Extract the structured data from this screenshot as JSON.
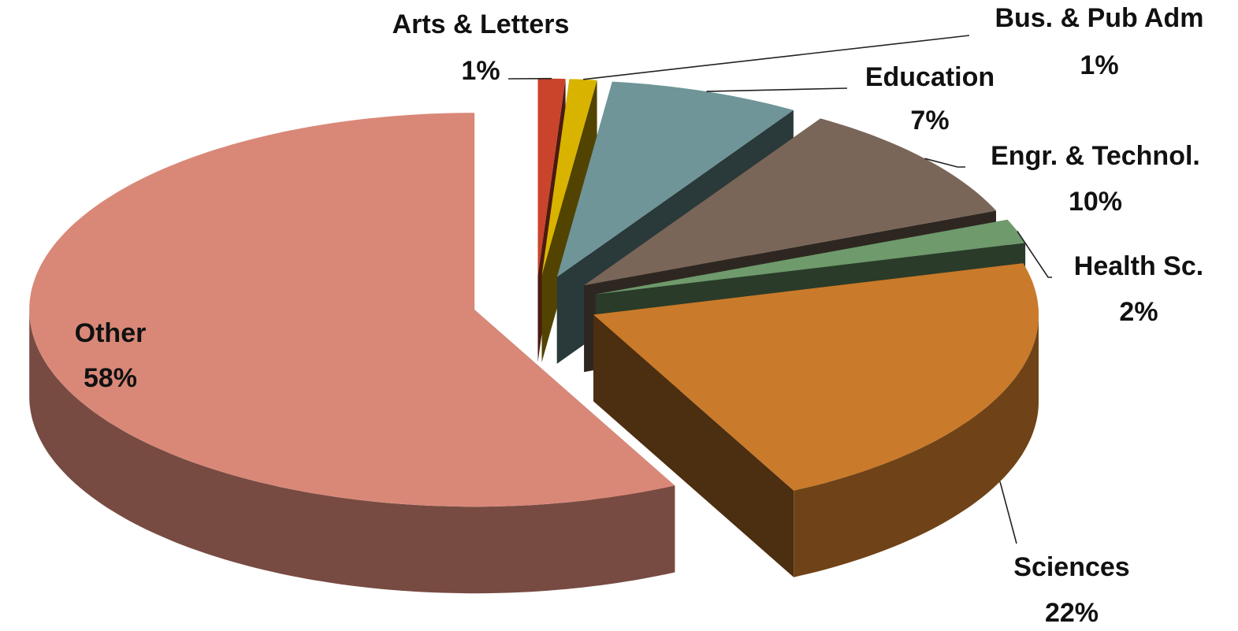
{
  "chart_data": {
    "type": "pie",
    "categories": [
      "Arts & Letters",
      "Bus. & Pub Adm",
      "Education",
      "Engr. & Technol.",
      "Health Sc.",
      "Sciences",
      "Other"
    ],
    "values": [
      1,
      1,
      7,
      10,
      2,
      22,
      58
    ],
    "value_labels": [
      "1%",
      "1%",
      "7%",
      "10%",
      "2%",
      "22%",
      "58%"
    ],
    "colors": [
      "#c9442a",
      "#d8b400",
      "#6f9598",
      "#7a6658",
      "#6e9a6c",
      "#c97a2a",
      "#d98878"
    ]
  }
}
